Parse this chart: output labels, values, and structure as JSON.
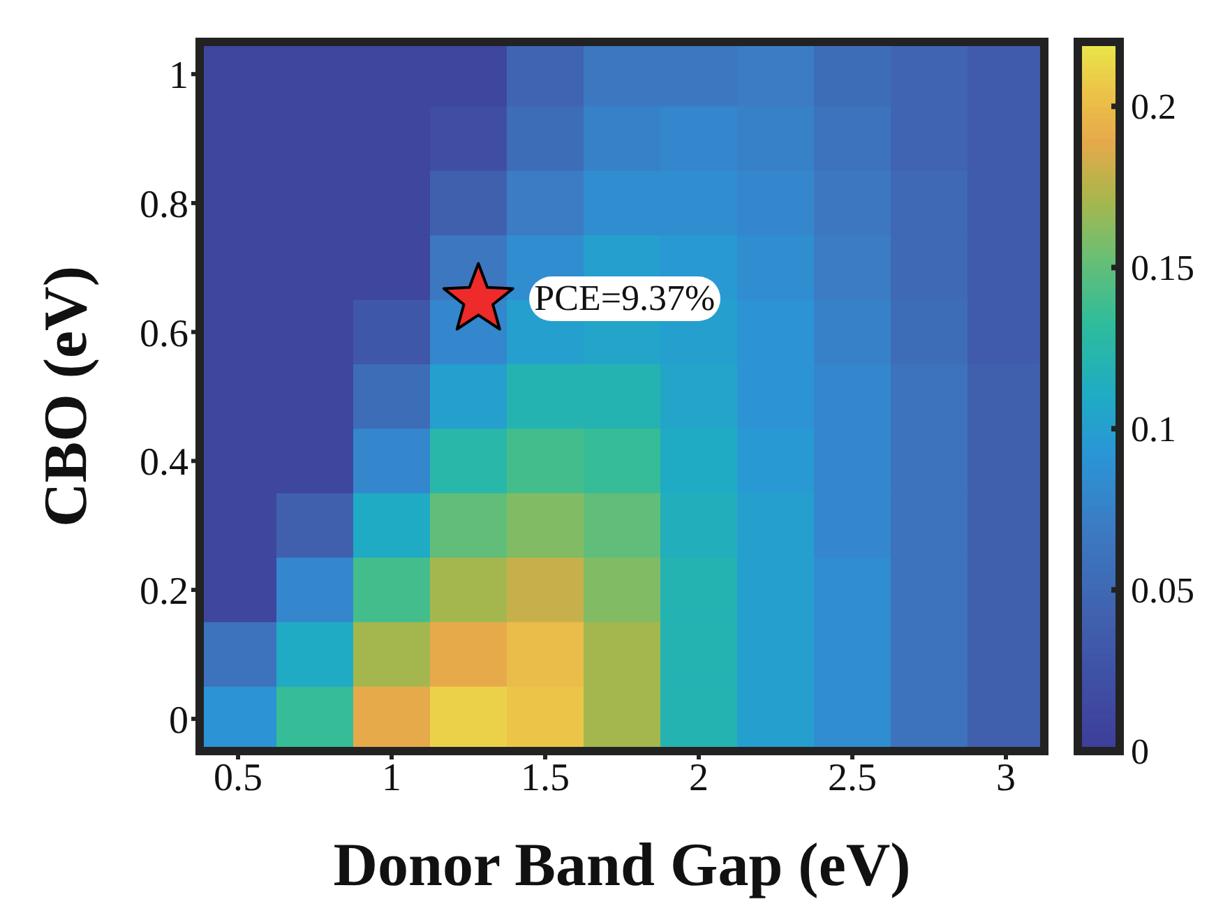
{
  "chart_data": {
    "type": "heatmap",
    "xlabel": "Donor Band Gap (eV)",
    "ylabel": "CBO (eV)",
    "categories": [
      "0.5",
      null,
      "1",
      null,
      "1.5",
      null,
      "2",
      null,
      "2.5",
      null,
      "3"
    ],
    "y_categories": [
      "1",
      null,
      "0.8",
      null,
      "0.6",
      null,
      "0.4",
      null,
      "0.2",
      null,
      "0"
    ],
    "cells": [
      [
        0.01,
        0.01,
        0.01,
        0.01,
        0.045,
        0.065,
        0.065,
        0.07,
        0.055,
        0.045,
        0.035
      ],
      [
        0.01,
        0.01,
        0.01,
        0.02,
        0.055,
        0.075,
        0.08,
        0.075,
        0.06,
        0.045,
        0.035
      ],
      [
        0.01,
        0.01,
        0.01,
        0.04,
        0.07,
        0.085,
        0.085,
        0.08,
        0.065,
        0.05,
        0.035
      ],
      [
        0.01,
        0.01,
        0.01,
        0.065,
        0.085,
        0.1,
        0.095,
        0.085,
        0.07,
        0.05,
        0.035
      ],
      [
        0.01,
        0.01,
        0.03,
        0.08,
        0.1,
        0.105,
        0.1,
        0.09,
        0.075,
        0.055,
        0.035
      ],
      [
        0.01,
        0.01,
        0.055,
        0.1,
        0.12,
        0.12,
        0.105,
        0.09,
        0.08,
        0.06,
        0.04
      ],
      [
        0.01,
        0.01,
        0.08,
        0.125,
        0.14,
        0.135,
        0.11,
        0.095,
        0.08,
        0.06,
        0.04
      ],
      [
        0.01,
        0.04,
        0.11,
        0.15,
        0.16,
        0.15,
        0.115,
        0.1,
        0.08,
        0.06,
        0.04
      ],
      [
        0.01,
        0.08,
        0.14,
        0.17,
        0.18,
        0.16,
        0.12,
        0.1,
        0.085,
        0.06,
        0.04
      ],
      [
        0.06,
        0.11,
        0.17,
        0.19,
        0.2,
        0.17,
        0.12,
        0.1,
        0.085,
        0.06,
        0.04
      ],
      [
        0.09,
        0.135,
        0.19,
        0.21,
        0.205,
        0.17,
        0.12,
        0.1,
        0.085,
        0.06,
        0.04
      ]
    ],
    "clim": [
      0,
      0.22
    ],
    "cticks": [
      0,
      0.05,
      0.1,
      0.15,
      0.2
    ],
    "annotations": [
      "PCE=9.37%"
    ]
  }
}
